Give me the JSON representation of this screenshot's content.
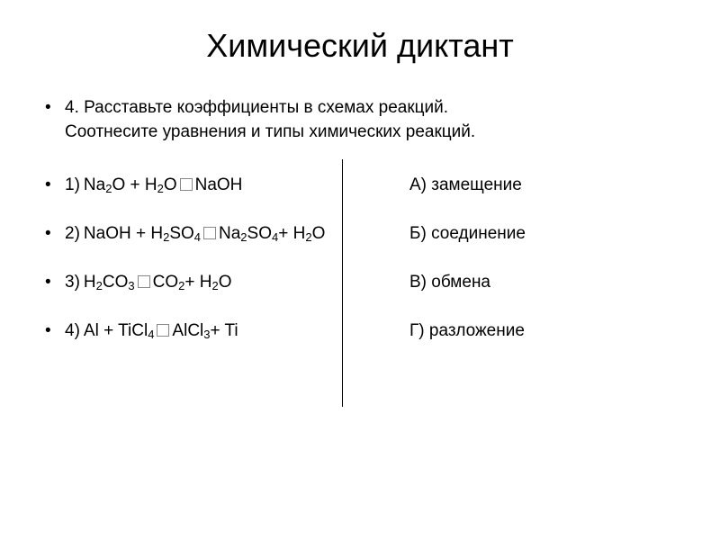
{
  "title": "Химический диктант",
  "instruction_num": "4.",
  "instruction_line1": "Расставьте коэффициенты в схемах реакций.",
  "instruction_line2": "Соотнесите уравнения и типы химических реакций.",
  "rows": [
    {
      "num": "1)",
      "eq_parts": [
        "Na",
        "2",
        "O + H",
        "2",
        "O ",
        "box",
        " NaOH"
      ],
      "answer": "А) замещение"
    },
    {
      "num": "2)",
      "eq_parts": [
        "NaOH + H",
        "2",
        "SO",
        "4",
        " ",
        "box",
        "Na",
        "2",
        "SO",
        "4",
        " + H",
        "2",
        "O"
      ],
      "answer": "Б) соединение"
    },
    {
      "num": "3)",
      "eq_parts": [
        "H",
        "2",
        "CO",
        "3",
        " ",
        "box",
        " CO",
        "2",
        " + H",
        "2",
        "O"
      ],
      "answer": "В) обмена"
    },
    {
      "num": "4)",
      "eq_parts": [
        "Al + TiCl",
        "4",
        " ",
        "box",
        " AlCl",
        "3",
        " + Ti"
      ],
      "answer": "Г) разложение"
    }
  ],
  "colors": {
    "background": "#ffffff",
    "text": "#000000",
    "divider": "#000000",
    "box_border": "#888888"
  },
  "typography": {
    "title_fontsize": 36,
    "body_fontsize": 19,
    "sub_fontsize": 13,
    "font_family": "Arial"
  }
}
